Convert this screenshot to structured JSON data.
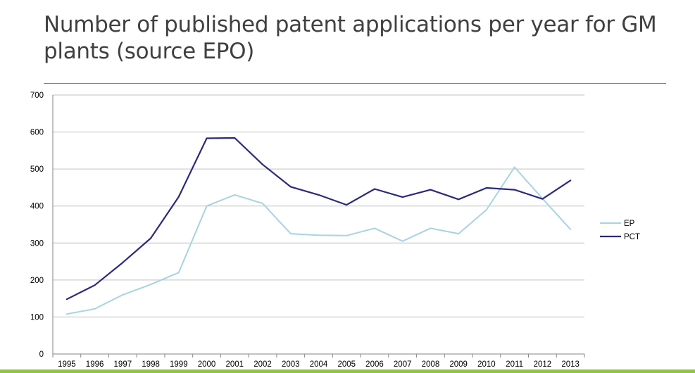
{
  "slide": {
    "title": "Number of published patent applications per year for GM plants (source EPO)"
  },
  "colors": {
    "title_text": "#404040",
    "divider": "#7f7f7f",
    "gridline": "#c0c0c0",
    "axis": "#868686",
    "bottom_bar": "#8dc63f"
  },
  "chart_data": {
    "type": "line",
    "title": "",
    "xlabel": "",
    "ylabel": "",
    "x": [
      1995,
      1996,
      1997,
      1998,
      1999,
      2000,
      2001,
      2002,
      2003,
      2004,
      2005,
      2006,
      2007,
      2008,
      2009,
      2010,
      2011,
      2012,
      2013
    ],
    "ylim": [
      0,
      700
    ],
    "yticks": [
      0,
      100,
      200,
      300,
      400,
      500,
      600,
      700
    ],
    "grid": true,
    "legend_position": "right",
    "series": [
      {
        "name": "EP",
        "color": "#a7d4e0",
        "values": [
          108,
          122,
          160,
          188,
          220,
          400,
          430,
          407,
          325,
          321,
          320,
          340,
          305,
          340,
          325,
          390,
          505,
          420,
          337
        ]
      },
      {
        "name": "PCT",
        "color": "#2b2a7a",
        "values": [
          148,
          186,
          247,
          313,
          425,
          583,
          584,
          512,
          452,
          430,
          403,
          446,
          424,
          444,
          418,
          449,
          444,
          419,
          469
        ]
      }
    ]
  }
}
